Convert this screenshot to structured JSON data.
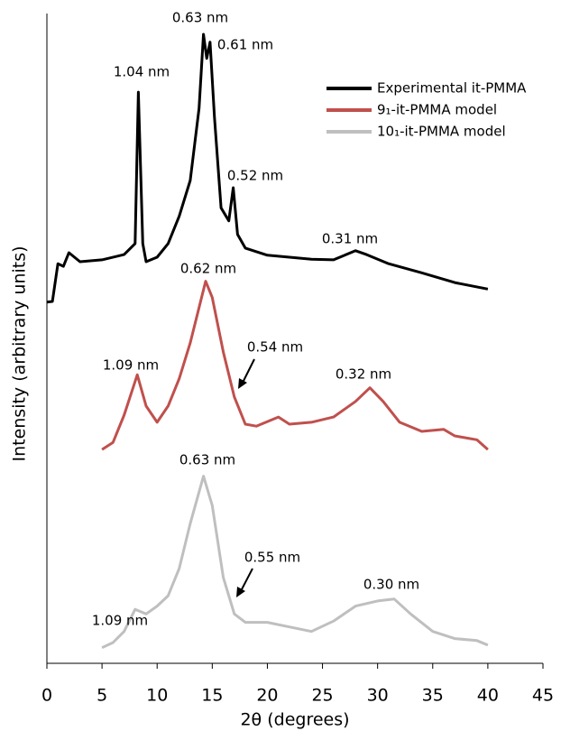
{
  "chart_data": {
    "type": "line",
    "xlabel": "2θ (degrees)",
    "ylabel": "Intensity (arbitrary units)",
    "xlim": [
      0,
      45
    ],
    "xticks": [
      0,
      5,
      10,
      15,
      20,
      25,
      30,
      35,
      40,
      45
    ],
    "ylim": [
      0,
      100
    ],
    "series": [
      {
        "name": "Experimental it-PMMA",
        "color": "#000000",
        "x": [
          0,
          0.5,
          1,
          1.5,
          2,
          3,
          5,
          7,
          8,
          8.3,
          8.7,
          9,
          10,
          11,
          12,
          13,
          13.8,
          14.2,
          14.5,
          14.8,
          15.2,
          15.8,
          16.5,
          16.9,
          17.3,
          18,
          20,
          24,
          26,
          28,
          29,
          31,
          34,
          37,
          40
        ],
        "values": [
          55.6,
          55.7,
          61.5,
          61.1,
          63.2,
          61.8,
          62.1,
          62.9,
          64.6,
          87.9,
          64.6,
          61.8,
          62.5,
          64.6,
          68.8,
          74.3,
          85.4,
          96.8,
          93.1,
          95.6,
          84.0,
          70.1,
          68.1,
          73.2,
          66.0,
          63.9,
          62.8,
          62.2,
          62.1,
          63.5,
          62.9,
          61.5,
          60.1,
          58.6,
          57.6
        ]
      },
      {
        "name": "9₁-it-PMMA model",
        "color": "#c0504d",
        "x": [
          5,
          6,
          7,
          8.2,
          9,
          10,
          11,
          12,
          13,
          14.4,
          15,
          16,
          17,
          18,
          19,
          21,
          22,
          24,
          26,
          28,
          29.3,
          30.5,
          32,
          34,
          36,
          37,
          39,
          40
        ],
        "values": [
          32.9,
          34.0,
          38.2,
          44.4,
          39.6,
          37.1,
          39.6,
          43.8,
          49.3,
          58.8,
          56.3,
          47.9,
          41.0,
          36.8,
          36.5,
          37.9,
          36.8,
          37.1,
          37.9,
          40.3,
          42.4,
          40.3,
          37.1,
          35.7,
          36.0,
          35.0,
          34.4,
          32.9
        ]
      },
      {
        "name": "10₁-it-PMMA model",
        "color": "#bfbfbf",
        "x": [
          5,
          6,
          7,
          8,
          9,
          10,
          11,
          12,
          13,
          14.2,
          15,
          16,
          17,
          18,
          20,
          22,
          24,
          26,
          28,
          30,
          31.5,
          33,
          35,
          37,
          39,
          40
        ],
        "values": [
          2.4,
          3.2,
          4.9,
          8.3,
          7.6,
          8.8,
          10.4,
          14.6,
          21.5,
          28.8,
          24.3,
          13.2,
          7.6,
          6.3,
          6.3,
          5.6,
          4.9,
          6.5,
          8.8,
          9.6,
          9.9,
          7.6,
          4.9,
          3.8,
          3.5,
          2.8
        ]
      }
    ],
    "annotations": [
      "0.63 nm",
      "0.61 nm",
      "1.04 nm",
      "0.52 nm",
      "0.31 nm",
      "0.62 nm",
      "0.54 nm",
      "1.09 nm",
      "0.32 nm",
      "0.63 nm",
      "0.55 nm",
      "1.09 nm",
      "0.30 nm"
    ]
  }
}
